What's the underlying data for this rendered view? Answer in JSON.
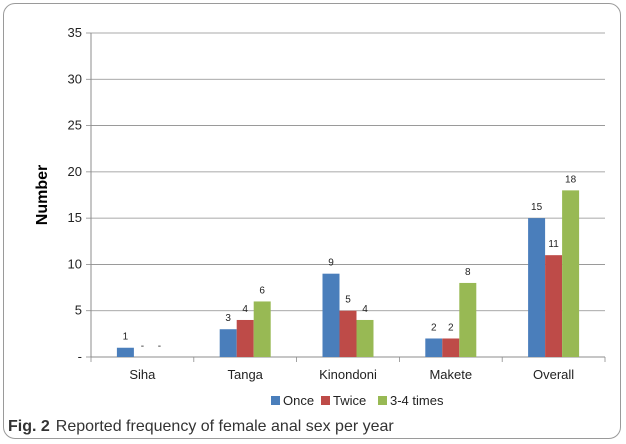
{
  "caption": {
    "fig": "Fig. 2",
    "text": "Reported frequency of female anal sex per year"
  },
  "chart_data": {
    "type": "bar",
    "categories": [
      "Siha",
      "Tanga",
      "Kinondoni",
      "Makete",
      "Overall"
    ],
    "series": [
      {
        "name": "Once",
        "color": "#4a7ebb",
        "values": [
          1,
          3,
          9,
          2,
          15
        ],
        "labels": [
          "1",
          "3",
          "9",
          "2",
          "15"
        ]
      },
      {
        "name": "Twice",
        "color": "#be4b48",
        "values": [
          0,
          4,
          5,
          2,
          11
        ],
        "labels": [
          "-",
          "4",
          "5",
          "2",
          "11"
        ]
      },
      {
        "name": "3-4 times",
        "color": "#98b954",
        "values": [
          0,
          6,
          4,
          8,
          18
        ],
        "labels": [
          "-",
          "6",
          "4",
          "8",
          "18"
        ]
      }
    ],
    "ylabel": "Number",
    "ylim": [
      0,
      35
    ],
    "yticks": [
      0,
      5,
      10,
      15,
      20,
      25,
      30,
      35
    ],
    "ytick_labels": [
      "-",
      "5",
      "10",
      "15",
      "20",
      "25",
      "30",
      "35"
    ],
    "grid": true,
    "legend": "bottom"
  }
}
